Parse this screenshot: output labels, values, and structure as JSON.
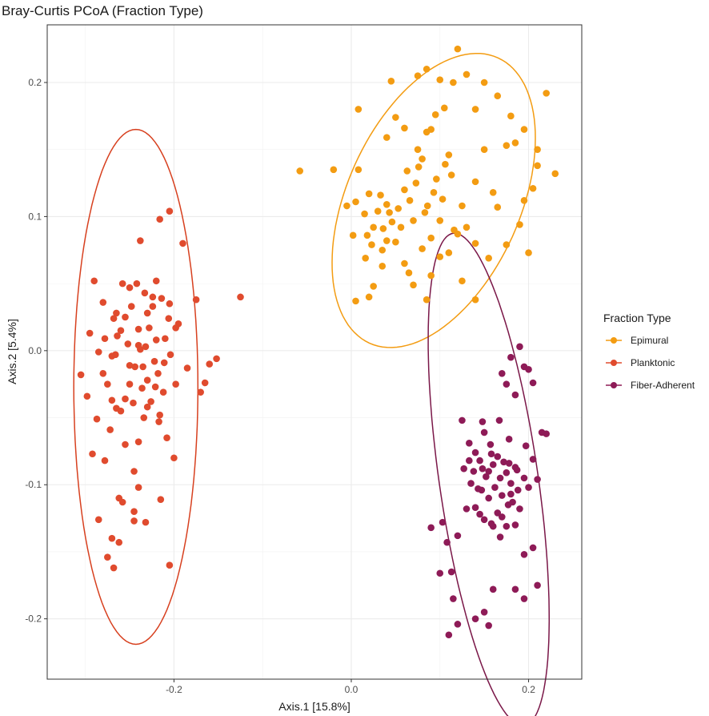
{
  "chart_data": {
    "type": "scatter",
    "title": "Bray-Curtis PCoA (Fraction Type)",
    "xlabel": "Axis.1   [15.8%]",
    "ylabel": "Axis.2   [5.4%]",
    "xlim": [
      -0.343,
      0.26
    ],
    "ylim": [
      -0.245,
      0.243
    ],
    "xticks": [
      -0.2,
      0.0,
      0.2
    ],
    "xtick_labels": [
      "-0.2",
      "0.0",
      "0.2"
    ],
    "yticks": [
      -0.2,
      -0.1,
      0.0,
      0.1,
      0.2
    ],
    "ytick_labels": [
      "-0.2",
      "-0.1",
      "0.0",
      "0.1",
      "0.2"
    ],
    "grid": true,
    "legend": {
      "title": "Fraction Type",
      "position": "right"
    },
    "series": [
      {
        "name": "Epimural",
        "color": "#F39C12",
        "ellipse_color": "#F39C12",
        "points": [
          [
            -0.058,
            0.134
          ],
          [
            -0.02,
            0.135
          ],
          [
            -0.005,
            0.108
          ],
          [
            0.002,
            0.086
          ],
          [
            0.005,
            0.111
          ],
          [
            0.008,
            0.135
          ],
          [
            0.015,
            0.102
          ],
          [
            0.018,
            0.086
          ],
          [
            0.02,
            0.117
          ],
          [
            0.023,
            0.079
          ],
          [
            0.025,
            0.092
          ],
          [
            0.03,
            0.104
          ],
          [
            0.033,
            0.116
          ],
          [
            0.036,
            0.091
          ],
          [
            0.04,
            0.109
          ],
          [
            0.043,
            0.103
          ],
          [
            0.046,
            0.096
          ],
          [
            0.05,
            0.081
          ],
          [
            0.053,
            0.106
          ],
          [
            0.056,
            0.092
          ],
          [
            0.06,
            0.12
          ],
          [
            0.063,
            0.134
          ],
          [
            0.066,
            0.112
          ],
          [
            0.07,
            0.097
          ],
          [
            0.073,
            0.125
          ],
          [
            0.076,
            0.137
          ],
          [
            0.08,
            0.143
          ],
          [
            0.083,
            0.103
          ],
          [
            0.086,
            0.108
          ],
          [
            0.09,
            0.084
          ],
          [
            0.093,
            0.118
          ],
          [
            0.096,
            0.128
          ],
          [
            0.1,
            0.097
          ],
          [
            0.103,
            0.113
          ],
          [
            0.106,
            0.139
          ],
          [
            0.11,
            0.146
          ],
          [
            0.113,
            0.131
          ],
          [
            0.116,
            0.09
          ],
          [
            0.12,
            0.087
          ],
          [
            0.125,
            0.108
          ],
          [
            0.04,
            0.159
          ],
          [
            0.05,
            0.174
          ],
          [
            0.075,
            0.15
          ],
          [
            0.085,
            0.163
          ],
          [
            0.095,
            0.176
          ],
          [
            0.105,
            0.181
          ],
          [
            0.09,
            0.165
          ],
          [
            0.115,
            0.2
          ],
          [
            0.13,
            0.206
          ],
          [
            0.14,
            0.18
          ],
          [
            0.15,
            0.2
          ],
          [
            0.165,
            0.19
          ],
          [
            0.18,
            0.175
          ],
          [
            0.185,
            0.155
          ],
          [
            0.195,
            0.165
          ],
          [
            0.21,
            0.15
          ],
          [
            0.22,
            0.192
          ],
          [
            0.23,
            0.132
          ],
          [
            0.205,
            0.121
          ],
          [
            0.21,
            0.138
          ],
          [
            0.195,
            0.112
          ],
          [
            0.12,
            0.225
          ],
          [
            0.075,
            0.205
          ],
          [
            0.1,
            0.202
          ],
          [
            0.085,
            0.21
          ],
          [
            0.06,
            0.166
          ],
          [
            0.045,
            0.201
          ],
          [
            0.008,
            0.18
          ],
          [
            0.016,
            0.069
          ],
          [
            0.025,
            0.048
          ],
          [
            0.035,
            0.075
          ],
          [
            0.06,
            0.065
          ],
          [
            0.07,
            0.049
          ],
          [
            0.08,
            0.076
          ],
          [
            0.09,
            0.056
          ],
          [
            0.1,
            0.07
          ],
          [
            0.11,
            0.073
          ],
          [
            0.125,
            0.052
          ],
          [
            0.14,
            0.08
          ],
          [
            0.155,
            0.069
          ],
          [
            0.175,
            0.079
          ],
          [
            0.19,
            0.094
          ],
          [
            0.2,
            0.073
          ],
          [
            0.165,
            0.107
          ],
          [
            0.14,
            0.126
          ],
          [
            0.15,
            0.15
          ],
          [
            0.02,
            0.04
          ],
          [
            0.005,
            0.037
          ],
          [
            0.065,
            0.058
          ],
          [
            0.04,
            0.082
          ],
          [
            0.13,
            0.092
          ],
          [
            0.175,
            0.153
          ],
          [
            0.16,
            0.118
          ],
          [
            0.085,
            0.038
          ],
          [
            0.14,
            0.038
          ],
          [
            0.035,
            0.063
          ]
        ],
        "ellipse": {
          "cx": 0.093,
          "cy": 0.112,
          "rx": 0.134,
          "ry": 0.085,
          "angle_deg": 42
        }
      },
      {
        "name": "Planktonic",
        "color": "#E04B2E",
        "ellipse_color": "#D7401F",
        "points": [
          [
            -0.305,
            -0.018
          ],
          [
            -0.298,
            -0.034
          ],
          [
            -0.29,
            0.052
          ],
          [
            -0.285,
            -0.001
          ],
          [
            -0.28,
            0.036
          ],
          [
            -0.278,
            0.009
          ],
          [
            -0.275,
            -0.025
          ],
          [
            -0.272,
            -0.059
          ],
          [
            -0.27,
            -0.037
          ],
          [
            -0.268,
            0.024
          ],
          [
            -0.266,
            -0.003
          ],
          [
            -0.264,
            0.011
          ],
          [
            -0.26,
            -0.045
          ],
          [
            -0.258,
            0.05
          ],
          [
            -0.255,
            0.025
          ],
          [
            -0.252,
            0.005
          ],
          [
            -0.25,
            -0.025
          ],
          [
            -0.248,
            0.033
          ],
          [
            -0.246,
            -0.039
          ],
          [
            -0.244,
            -0.012
          ],
          [
            -0.242,
            0.05
          ],
          [
            -0.24,
            0.016
          ],
          [
            -0.238,
            0.001
          ],
          [
            -0.236,
            -0.028
          ],
          [
            -0.234,
            -0.05
          ],
          [
            -0.232,
            0.003
          ],
          [
            -0.23,
            -0.022
          ],
          [
            -0.228,
            0.017
          ],
          [
            -0.226,
            -0.038
          ],
          [
            -0.224,
            0.033
          ],
          [
            -0.222,
            -0.008
          ],
          [
            -0.22,
            0.008
          ],
          [
            -0.218,
            -0.017
          ],
          [
            -0.216,
            -0.048
          ],
          [
            -0.214,
            0.039
          ],
          [
            -0.212,
            -0.031
          ],
          [
            -0.21,
            0.009
          ],
          [
            -0.208,
            -0.065
          ],
          [
            -0.206,
            0.024
          ],
          [
            -0.204,
            -0.003
          ],
          [
            -0.2,
            -0.08
          ],
          [
            -0.198,
            -0.025
          ],
          [
            -0.195,
            0.02
          ],
          [
            -0.19,
            0.08
          ],
          [
            -0.185,
            -0.013
          ],
          [
            -0.175,
            0.038
          ],
          [
            -0.17,
            -0.031
          ],
          [
            -0.165,
            -0.024
          ],
          [
            -0.16,
            -0.01
          ],
          [
            -0.152,
            -0.006
          ],
          [
            -0.125,
            0.04
          ],
          [
            -0.205,
            0.104
          ],
          [
            -0.216,
            0.098
          ],
          [
            -0.238,
            0.082
          ],
          [
            -0.233,
            0.043
          ],
          [
            -0.24,
            -0.102
          ],
          [
            -0.245,
            -0.12
          ],
          [
            -0.258,
            -0.113
          ],
          [
            -0.262,
            -0.11
          ],
          [
            -0.27,
            -0.14
          ],
          [
            -0.275,
            -0.154
          ],
          [
            -0.268,
            -0.162
          ],
          [
            -0.262,
            -0.143
          ],
          [
            -0.245,
            -0.127
          ],
          [
            -0.232,
            -0.128
          ],
          [
            -0.215,
            -0.111
          ],
          [
            -0.205,
            -0.16
          ],
          [
            -0.285,
            -0.126
          ],
          [
            -0.292,
            -0.077
          ],
          [
            -0.27,
            -0.004
          ],
          [
            -0.26,
            0.015
          ],
          [
            -0.25,
            0.047
          ],
          [
            -0.265,
            0.028
          ],
          [
            -0.25,
            -0.011
          ],
          [
            -0.23,
            -0.042
          ],
          [
            -0.221,
            -0.027
          ],
          [
            -0.211,
            -0.009
          ],
          [
            -0.224,
            0.04
          ],
          [
            -0.255,
            -0.07
          ],
          [
            -0.245,
            -0.09
          ],
          [
            -0.235,
            -0.012
          ],
          [
            -0.22,
            0.052
          ],
          [
            -0.23,
            0.028
          ],
          [
            -0.24,
            -0.068
          ],
          [
            -0.255,
            -0.036
          ],
          [
            -0.278,
            -0.082
          ],
          [
            -0.28,
            -0.017
          ],
          [
            -0.265,
            -0.043
          ],
          [
            -0.295,
            0.013
          ],
          [
            -0.287,
            -0.051
          ],
          [
            -0.217,
            -0.053
          ],
          [
            -0.205,
            0.035
          ],
          [
            -0.198,
            0.017
          ],
          [
            -0.24,
            0.004
          ]
        ],
        "ellipse": {
          "cx": -0.243,
          "cy": -0.027,
          "rx": 0.07,
          "ry": 0.192,
          "angle_deg": 0
        }
      },
      {
        "name": "Fiber-Adherent",
        "color": "#8E1B57",
        "ellipse_color": "#7A1748",
        "points": [
          [
            0.125,
            -0.052
          ],
          [
            0.133,
            -0.069
          ],
          [
            0.14,
            -0.076
          ],
          [
            0.145,
            -0.082
          ],
          [
            0.148,
            -0.088
          ],
          [
            0.15,
            -0.061
          ],
          [
            0.152,
            -0.094
          ],
          [
            0.155,
            -0.09
          ],
          [
            0.158,
            -0.077
          ],
          [
            0.16,
            -0.085
          ],
          [
            0.162,
            -0.102
          ],
          [
            0.165,
            -0.079
          ],
          [
            0.168,
            -0.095
          ],
          [
            0.17,
            -0.108
          ],
          [
            0.172,
            -0.083
          ],
          [
            0.175,
            -0.091
          ],
          [
            0.178,
            -0.066
          ],
          [
            0.18,
            -0.099
          ],
          [
            0.182,
            -0.113
          ],
          [
            0.185,
            -0.087
          ],
          [
            0.188,
            -0.104
          ],
          [
            0.19,
            -0.118
          ],
          [
            0.195,
            -0.095
          ],
          [
            0.2,
            -0.102
          ],
          [
            0.205,
            -0.081
          ],
          [
            0.21,
            -0.096
          ],
          [
            0.215,
            -0.061
          ],
          [
            0.22,
            -0.062
          ],
          [
            0.175,
            -0.025
          ],
          [
            0.18,
            -0.005
          ],
          [
            0.185,
            -0.033
          ],
          [
            0.19,
            0.003
          ],
          [
            0.195,
            -0.012
          ],
          [
            0.2,
            -0.014
          ],
          [
            0.205,
            -0.024
          ],
          [
            0.17,
            -0.017
          ],
          [
            0.135,
            -0.099
          ],
          [
            0.14,
            -0.117
          ],
          [
            0.145,
            -0.122
          ],
          [
            0.15,
            -0.126
          ],
          [
            0.155,
            -0.11
          ],
          [
            0.16,
            -0.131
          ],
          [
            0.165,
            -0.121
          ],
          [
            0.17,
            -0.124
          ],
          [
            0.175,
            -0.131
          ],
          [
            0.18,
            -0.107
          ],
          [
            0.185,
            -0.13
          ],
          [
            0.195,
            -0.152
          ],
          [
            0.205,
            -0.147
          ],
          [
            0.21,
            -0.175
          ],
          [
            0.195,
            -0.185
          ],
          [
            0.185,
            -0.178
          ],
          [
            0.16,
            -0.178
          ],
          [
            0.12,
            -0.204
          ],
          [
            0.11,
            -0.212
          ],
          [
            0.1,
            -0.166
          ],
          [
            0.09,
            -0.132
          ],
          [
            0.115,
            -0.185
          ],
          [
            0.14,
            -0.2
          ],
          [
            0.15,
            -0.195
          ],
          [
            0.155,
            -0.205
          ],
          [
            0.12,
            -0.138
          ],
          [
            0.13,
            -0.118
          ],
          [
            0.127,
            -0.088
          ],
          [
            0.138,
            -0.09
          ],
          [
            0.147,
            -0.104
          ],
          [
            0.157,
            -0.07
          ],
          [
            0.167,
            -0.052
          ],
          [
            0.177,
            -0.115
          ],
          [
            0.187,
            -0.089
          ],
          [
            0.197,
            -0.071
          ],
          [
            0.103,
            -0.128
          ],
          [
            0.108,
            -0.143
          ],
          [
            0.113,
            -0.165
          ],
          [
            0.148,
            -0.053
          ],
          [
            0.158,
            -0.129
          ],
          [
            0.168,
            -0.139
          ],
          [
            0.178,
            -0.084
          ],
          [
            0.133,
            -0.082
          ],
          [
            0.143,
            -0.103
          ]
        ],
        "ellipse": {
          "cx": 0.155,
          "cy": -0.096,
          "rx": 0.055,
          "ry": 0.188,
          "angle_deg": 13
        }
      }
    ]
  }
}
